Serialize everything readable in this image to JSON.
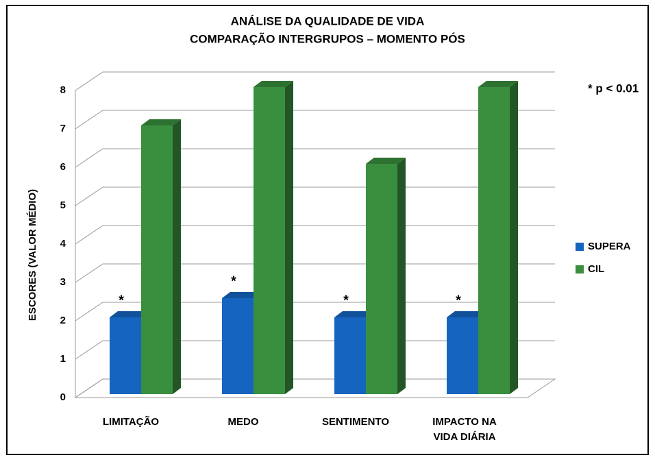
{
  "chart_data": {
    "type": "bar3d",
    "title": "ANÁLISE DA QUALIDADE DE VIDA",
    "subtitle": "COMPARAÇÃO  INTERGRUPOS – MOMENTO PÓS",
    "y_label": "ESCORES (VALOR MÉDIO)",
    "annotation": "* p < 0.01",
    "categories": [
      "LIMITAÇÃO",
      "MEDO",
      "SENTIMENTO",
      "IMPACTO NA VIDA DIÁRIA"
    ],
    "series": [
      {
        "name": "SUPERA",
        "color": "#1565c0",
        "values": [
          2,
          2.5,
          2,
          2
        ],
        "markers": [
          "*",
          "*",
          "*",
          "*"
        ]
      },
      {
        "name": "CIL",
        "color": "#3a8f3f",
        "values": [
          7,
          8,
          6,
          8
        ]
      }
    ],
    "ylim": [
      0,
      8
    ],
    "yticks": [
      0,
      1,
      2,
      3,
      4,
      5,
      6,
      7,
      8
    ],
    "grid": true,
    "legend": "right"
  }
}
